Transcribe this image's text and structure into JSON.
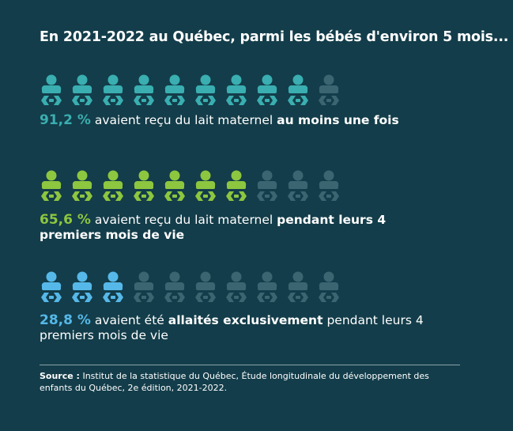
{
  "title": "En 2021-2022 au Québec, parmi les bébés d'environ 5 mois...",
  "rows": [
    {
      "color": "#3aaeb0",
      "icons_filled": 9,
      "icons_total": 10,
      "parts": [
        {
          "text": "91,2 %",
          "style": "highlight"
        },
        {
          "text": "avaient reçu du lait maternel",
          "style": "normal"
        },
        {
          "text": "au moins une fois",
          "style": "bold"
        }
      ]
    },
    {
      "color": "#8dc63f",
      "icons_filled": 7,
      "icons_total": 10,
      "parts": [
        {
          "text": "65,6 %",
          "style": "highlight"
        },
        {
          "text": "avaient reçu du lait maternel",
          "style": "normal"
        },
        {
          "text": "pendant leurs 4 premiers mois de vie",
          "style": "bold"
        }
      ]
    },
    {
      "color": "#56b8e8",
      "icons_filled": 3,
      "icons_total": 10,
      "parts": [
        {
          "text": "28,8 %",
          "style": "highlight"
        },
        {
          "text": "avaient été",
          "style": "normal"
        },
        {
          "text": "allaités exclusivement",
          "style": "bold"
        },
        {
          "text": "pendant leurs 4 premiers mois de vie",
          "style": "normal"
        }
      ]
    }
  ],
  "empty_color": "#3b6571",
  "source": {
    "label": "Source :",
    "text": "Institut de la statistique du Québec, Étude longitudinale du développement des enfants du Québec, 2e édition, 2021-2022."
  }
}
